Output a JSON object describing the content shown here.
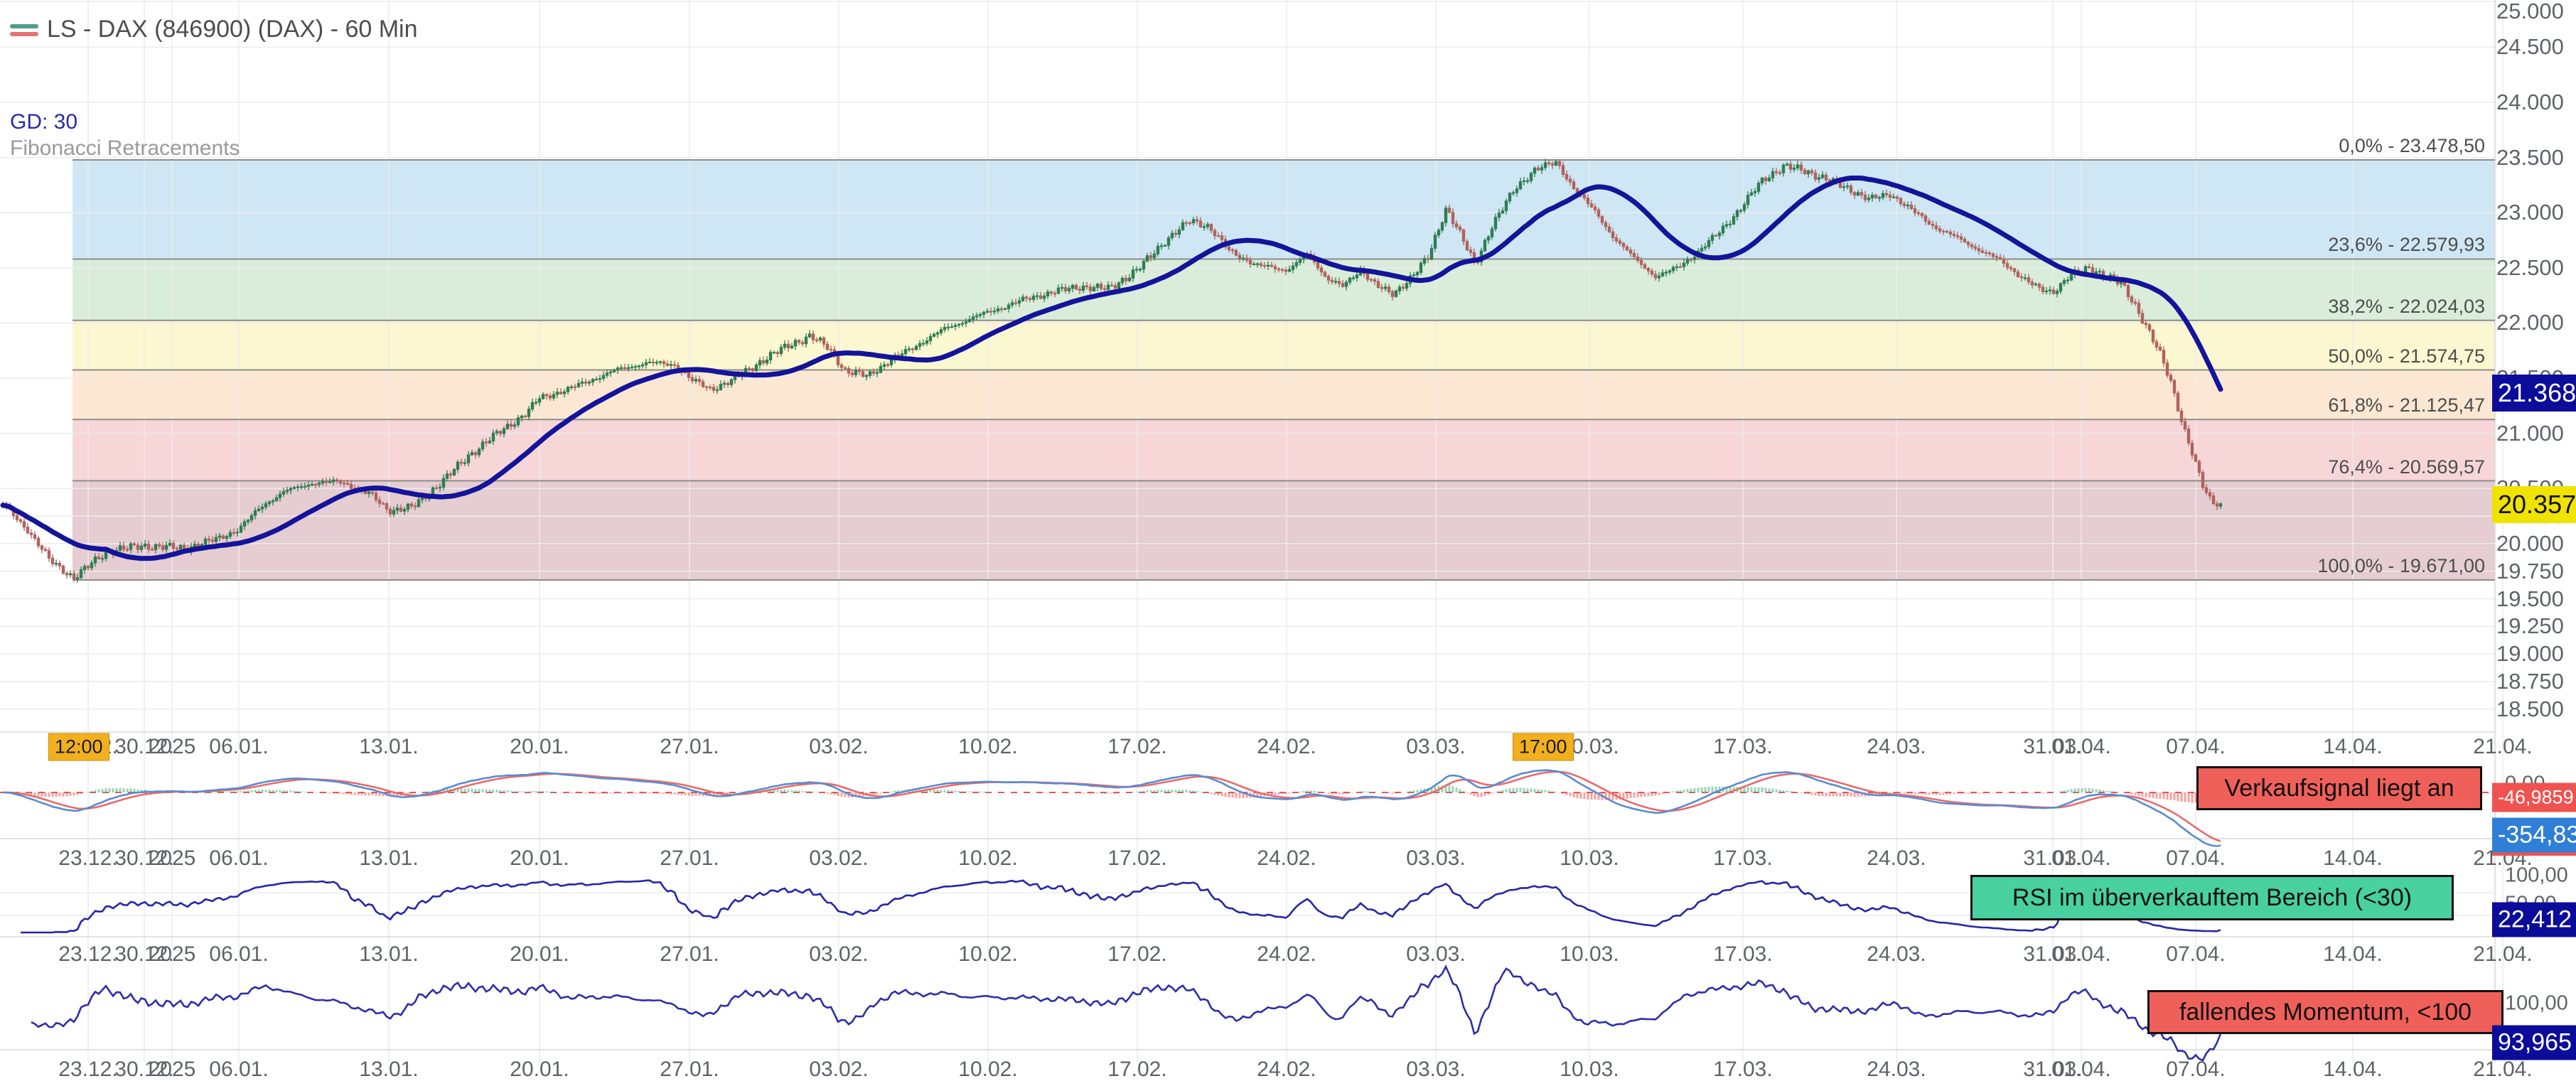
{
  "header": {
    "title": "LS - DAX (846900) (DAX) - 60 Min",
    "ma_label": "GD: 30",
    "overlay_label": "Fibonacci Retracements"
  },
  "legend_icon": {
    "line1_color": "#4d9e8e",
    "line2_color": "#e57373"
  },
  "colors": {
    "candle_up": "#2f7d52",
    "candle_down": "#b0635c",
    "ma_line": "#14149a",
    "macd_line": "#5b8bd0",
    "macd_signal": "#e96a6a",
    "macd_hist_up": "#4caf7d",
    "macd_hist_down": "#ef5350",
    "macd_zero_dash": "#e05b5b",
    "rsi_line": "#2626a8",
    "momentum_line": "#2e2ea8",
    "grid": "#ececec",
    "fib_line": "#8c8c8c",
    "panel_border": "#d8d8d8",
    "axis_text": "#5f6368",
    "badge_navy": "#0c0c9a",
    "badge_yellow": "#f0e300",
    "badge_red": "#ef5350",
    "badge_blue": "#2f7fd6",
    "signal_red_bg": "#f0605a",
    "signal_green_bg": "#48d0a0",
    "time_badge_bg": "#f2b01e"
  },
  "price_axis": {
    "labels": [
      {
        "text": "25.000",
        "value": 25000
      },
      {
        "text": "24.500",
        "value": 24500
      },
      {
        "text": "24.000",
        "value": 24000
      },
      {
        "text": "23.500",
        "value": 23500
      },
      {
        "text": "23.000",
        "value": 23000
      },
      {
        "text": "22.500",
        "value": 22500
      },
      {
        "text": "22.000",
        "value": 22000
      },
      {
        "text": "21.500",
        "value": 21500
      },
      {
        "text": "21.000",
        "value": 21000
      },
      {
        "text": "20.500",
        "value": 20500
      },
      {
        "text": "20.250",
        "value": 20250
      },
      {
        "text": "20.000",
        "value": 20000
      },
      {
        "text": "19.750",
        "value": 19750
      },
      {
        "text": "19.500",
        "value": 19500
      },
      {
        "text": "19.250",
        "value": 19250
      },
      {
        "text": "19.000",
        "value": 19000
      },
      {
        "text": "18.750",
        "value": 18750
      },
      {
        "text": "18.500",
        "value": 18500
      }
    ]
  },
  "time_axis": {
    "labels": [
      {
        "text": "23.12.",
        "x": 124
      },
      {
        "text": "30.12.",
        "x": 203
      },
      {
        "text": "2025",
        "x": 242
      },
      {
        "text": "06.01.",
        "x": 336
      },
      {
        "text": "13.01.",
        "x": 547
      },
      {
        "text": "20.01.",
        "x": 759
      },
      {
        "text": "27.01.",
        "x": 970
      },
      {
        "text": "03.02.",
        "x": 1180
      },
      {
        "text": "10.02.",
        "x": 1390
      },
      {
        "text": "17.02.",
        "x": 1600
      },
      {
        "text": "24.02.",
        "x": 1810
      },
      {
        "text": "03.03.",
        "x": 2020
      },
      {
        "text": "10.03.",
        "x": 2236
      },
      {
        "text": "17.03.",
        "x": 2452
      },
      {
        "text": "24.03.",
        "x": 2668
      },
      {
        "text": "31.03.",
        "x": 2888
      },
      {
        "text": "01.04.",
        "x": 2928
      },
      {
        "text": "07.04.",
        "x": 3089
      },
      {
        "text": "14.04.",
        "x": 3310
      },
      {
        "text": "21.04.",
        "x": 3521
      }
    ],
    "row_y": [
      1051,
      1208,
      1343,
      1505
    ],
    "time_badges": [
      {
        "text": "12:00",
        "x": 99
      },
      {
        "text": "17:00",
        "x": 2162
      }
    ]
  },
  "fibonacci": {
    "levels": [
      {
        "text": "0,0% - 23.478,50",
        "value": 23478.5
      },
      {
        "text": "23,6% - 22.579,93",
        "value": 22579.93
      },
      {
        "text": "38,2% - 22.024,03",
        "value": 22024.03
      },
      {
        "text": "50,0% - 21.574,75",
        "value": 21574.75
      },
      {
        "text": "61,8% - 21.125,47",
        "value": 21125.47
      },
      {
        "text": "76,4% - 20.569,57",
        "value": 20569.57
      },
      {
        "text": "100,0% - 19.671,00",
        "value": 19671.0
      }
    ],
    "band_colors": [
      "#cfe7f4",
      "#d9edda",
      "#fbf7d0",
      "#fce8d2",
      "#f7d6d8",
      "#e5cdd2"
    ]
  },
  "signal_boxes": {
    "macd": "Verkaufsignal liegt an",
    "rsi": "RSI im überverkauftem Bereich (<30)",
    "momentum": "fallendes Momentum, <100"
  },
  "value_badges": {
    "ma": "21.368",
    "last_price": "20.357",
    "macd_signal": "-46,9859",
    "macd_main": "-354,83",
    "rsi": "22,412",
    "momentum": "93,965"
  },
  "indicator_axis": {
    "macd_zero": "0,00",
    "rsi_top": "100,00",
    "rsi_mid": "50,00",
    "momentum_top": "100,00"
  },
  "chart_data": {
    "type": "candlestick",
    "title": "LS - DAX (846900) (DAX) - 60 Min",
    "interval": "60 Min",
    "ma_period": 30,
    "ylim": [
      18500,
      25000
    ],
    "grid": true,
    "last_price": 20357,
    "ma_value": 21368,
    "macd_value": -354.83,
    "macd_signal_value": -46.9859,
    "rsi_value": 22.412,
    "momentum_value": 93.965,
    "fib_levels_pct": [
      0.0,
      23.6,
      38.2,
      50.0,
      61.8,
      76.4,
      100.0
    ],
    "fib_levels_price": [
      23478.5,
      22579.93,
      22024.03,
      21574.75,
      21125.47,
      20569.57,
      19671.0
    ],
    "close_path": [
      [
        5,
        20350
      ],
      [
        40,
        20120
      ],
      [
        70,
        19850
      ],
      [
        104,
        19690
      ],
      [
        150,
        19930
      ],
      [
        200,
        19980
      ],
      [
        260,
        19960
      ],
      [
        300,
        20030
      ],
      [
        336,
        20130
      ],
      [
        370,
        20350
      ],
      [
        400,
        20470
      ],
      [
        440,
        20550
      ],
      [
        480,
        20560
      ],
      [
        520,
        20450
      ],
      [
        547,
        20300
      ],
      [
        580,
        20330
      ],
      [
        620,
        20550
      ],
      [
        660,
        20800
      ],
      [
        700,
        21000
      ],
      [
        740,
        21180
      ],
      [
        759,
        21320
      ],
      [
        800,
        21400
      ],
      [
        830,
        21480
      ],
      [
        870,
        21580
      ],
      [
        910,
        21640
      ],
      [
        950,
        21620
      ],
      [
        974,
        21480
      ],
      [
        1000,
        21400
      ],
      [
        1030,
        21480
      ],
      [
        1070,
        21650
      ],
      [
        1110,
        21800
      ],
      [
        1140,
        21880
      ],
      [
        1165,
        21780
      ],
      [
        1190,
        21560
      ],
      [
        1220,
        21520
      ],
      [
        1250,
        21650
      ],
      [
        1290,
        21800
      ],
      [
        1330,
        21950
      ],
      [
        1370,
        22050
      ],
      [
        1400,
        22120
      ],
      [
        1440,
        22210
      ],
      [
        1480,
        22280
      ],
      [
        1520,
        22330
      ],
      [
        1560,
        22310
      ],
      [
        1600,
        22480
      ],
      [
        1640,
        22750
      ],
      [
        1675,
        22930
      ],
      [
        1700,
        22880
      ],
      [
        1730,
        22650
      ],
      [
        1770,
        22520
      ],
      [
        1810,
        22480
      ],
      [
        1840,
        22620
      ],
      [
        1865,
        22420
      ],
      [
        1890,
        22330
      ],
      [
        1915,
        22480
      ],
      [
        1940,
        22330
      ],
      [
        1960,
        22250
      ],
      [
        1985,
        22420
      ],
      [
        2010,
        22600
      ],
      [
        2035,
        23050
      ],
      [
        2055,
        22800
      ],
      [
        2075,
        22520
      ],
      [
        2100,
        22900
      ],
      [
        2130,
        23200
      ],
      [
        2160,
        23400
      ],
      [
        2190,
        23450
      ],
      [
        2215,
        23220
      ],
      [
        2245,
        23000
      ],
      [
        2270,
        22780
      ],
      [
        2300,
        22580
      ],
      [
        2330,
        22420
      ],
      [
        2360,
        22500
      ],
      [
        2390,
        22650
      ],
      [
        2420,
        22830
      ],
      [
        2450,
        23050
      ],
      [
        2480,
        23300
      ],
      [
        2510,
        23420
      ],
      [
        2540,
        23380
      ],
      [
        2570,
        23300
      ],
      [
        2600,
        23220
      ],
      [
        2630,
        23120
      ],
      [
        2660,
        23170
      ],
      [
        2690,
        23020
      ],
      [
        2720,
        22880
      ],
      [
        2750,
        22780
      ],
      [
        2780,
        22680
      ],
      [
        2810,
        22580
      ],
      [
        2840,
        22440
      ],
      [
        2870,
        22300
      ],
      [
        2888,
        22280
      ],
      [
        2910,
        22420
      ],
      [
        2940,
        22500
      ],
      [
        2965,
        22420
      ],
      [
        2985,
        22350
      ],
      [
        3005,
        22150
      ],
      [
        3025,
        21900
      ],
      [
        3040,
        21700
      ],
      [
        3055,
        21450
      ],
      [
        3070,
        21100
      ],
      [
        3085,
        20800
      ],
      [
        3100,
        20500
      ],
      [
        3112,
        20380
      ],
      [
        3125,
        20357
      ]
    ]
  }
}
